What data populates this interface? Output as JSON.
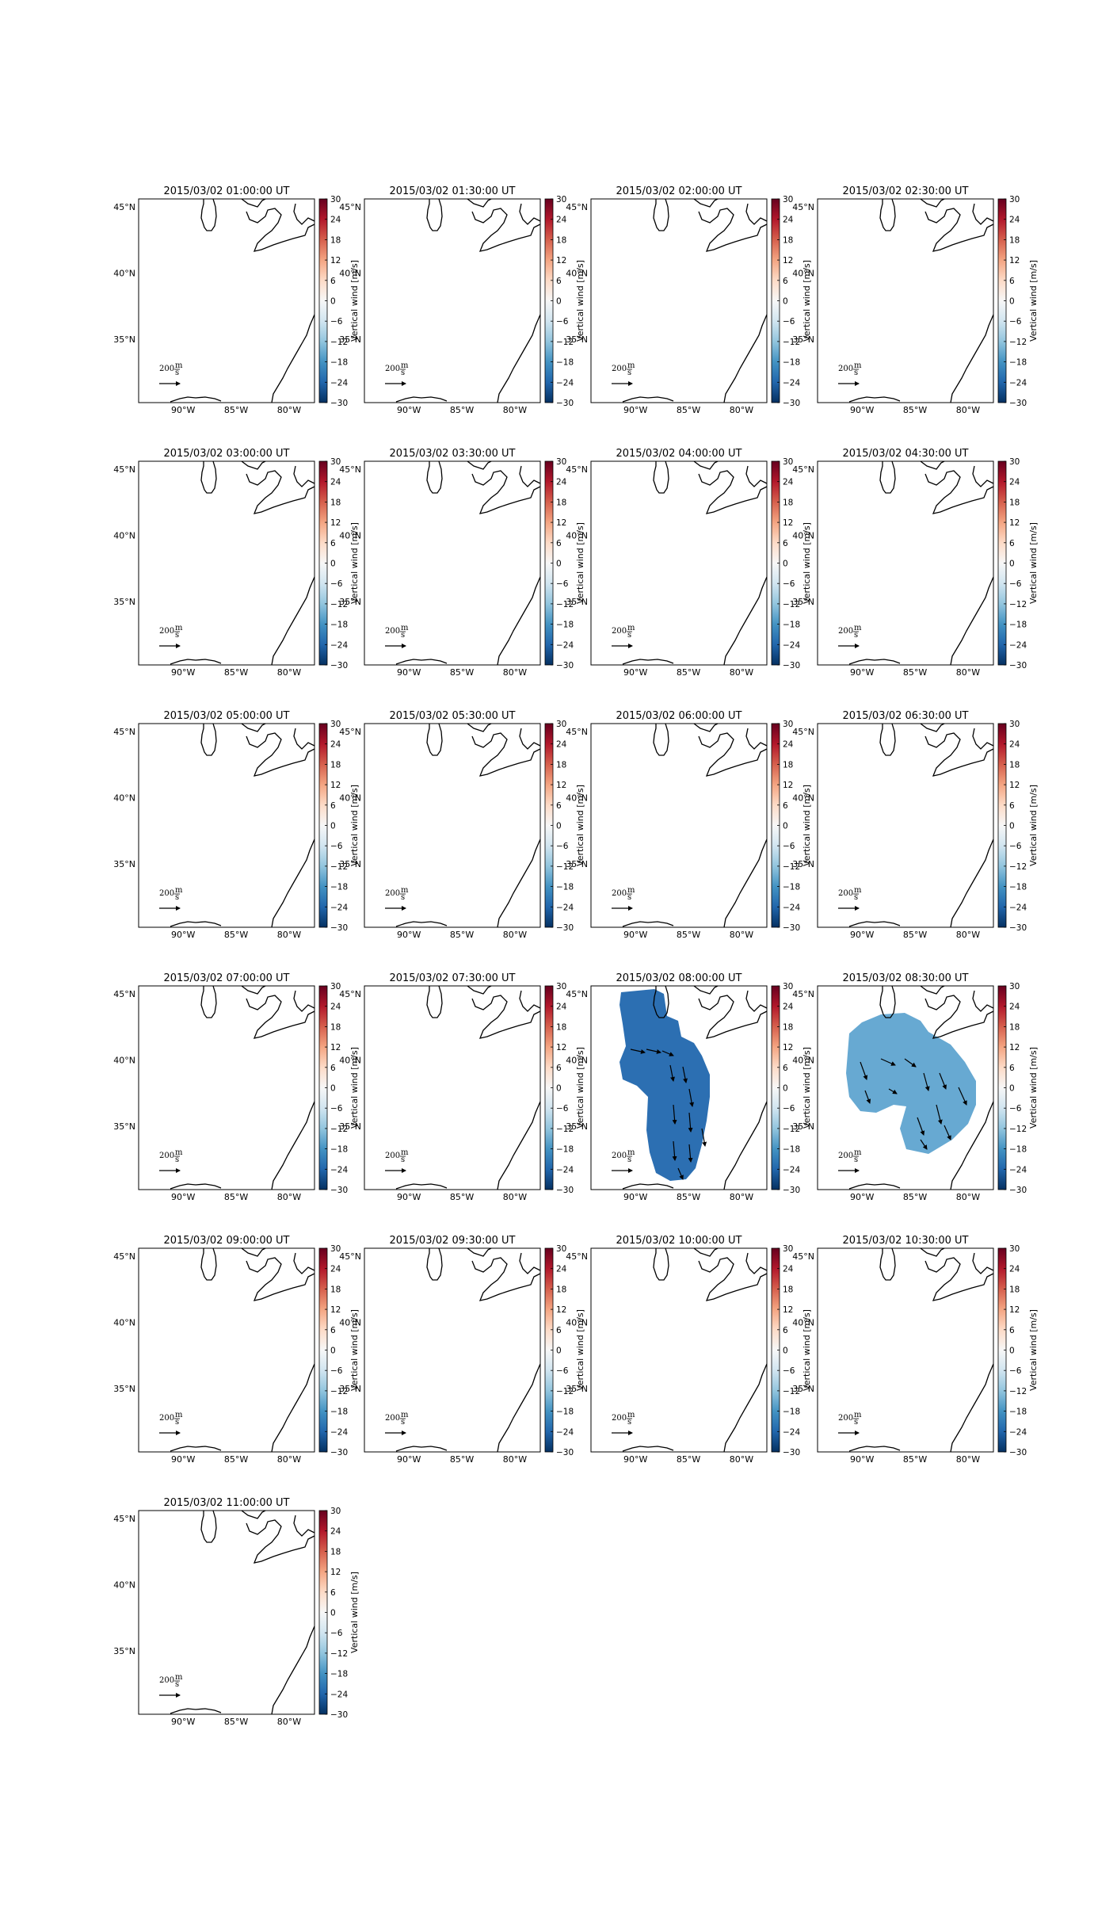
{
  "figure": {
    "panels": [
      {
        "title": "2015/03/02 01:00:00 UT",
        "field": "none"
      },
      {
        "title": "2015/03/02 01:30:00 UT",
        "field": "none"
      },
      {
        "title": "2015/03/02 02:00:00 UT",
        "field": "none"
      },
      {
        "title": "2015/03/02 02:30:00 UT",
        "field": "none"
      },
      {
        "title": "2015/03/02 03:00:00 UT",
        "field": "none"
      },
      {
        "title": "2015/03/02 03:30:00 UT",
        "field": "none"
      },
      {
        "title": "2015/03/02 04:00:00 UT",
        "field": "none"
      },
      {
        "title": "2015/03/02 04:30:00 UT",
        "field": "none"
      },
      {
        "title": "2015/03/02 05:00:00 UT",
        "field": "none"
      },
      {
        "title": "2015/03/02 05:30:00 UT",
        "field": "none"
      },
      {
        "title": "2015/03/02 06:00:00 UT",
        "field": "none"
      },
      {
        "title": "2015/03/02 06:30:00 UT",
        "field": "none"
      },
      {
        "title": "2015/03/02 07:00:00 UT",
        "field": "none"
      },
      {
        "title": "2015/03/02 07:30:00 UT",
        "field": "none"
      },
      {
        "title": "2015/03/02 08:00:00 UT",
        "field": "dark",
        "fill_color": "#2c6fb2"
      },
      {
        "title": "2015/03/02 08:30:00 UT",
        "field": "light",
        "fill_color": "#67a9d2"
      },
      {
        "title": "2015/03/02 09:00:00 UT",
        "field": "none"
      },
      {
        "title": "2015/03/02 09:30:00 UT",
        "field": "none"
      },
      {
        "title": "2015/03/02 10:00:00 UT",
        "field": "none"
      },
      {
        "title": "2015/03/02 10:30:00 UT",
        "field": "none"
      },
      {
        "title": "2015/03/02 11:00:00 UT",
        "field": "none"
      }
    ],
    "lat_ticks": [
      "45°N",
      "40°N",
      "35°N"
    ],
    "lon_ticks": [
      "90°W",
      "85°W",
      "80°W"
    ],
    "colorbar": {
      "label": "Vertical wind [m/s]",
      "ticks": [
        "30",
        "24",
        "18",
        "12",
        "6",
        "0",
        "−6",
        "−12",
        "−18",
        "−24",
        "−30"
      ],
      "colormap": "RdBu_r",
      "colors": [
        "#053061",
        "#2166ac",
        "#4393c3",
        "#92c5de",
        "#d1e5f0",
        "#f7f7f7",
        "#fddbc7",
        "#f4a582",
        "#d6604d",
        "#b2182b",
        "#67001f"
      ]
    },
    "reference_vector": {
      "value": "200",
      "unit_stack": [
        "m",
        "s"
      ]
    }
  }
}
